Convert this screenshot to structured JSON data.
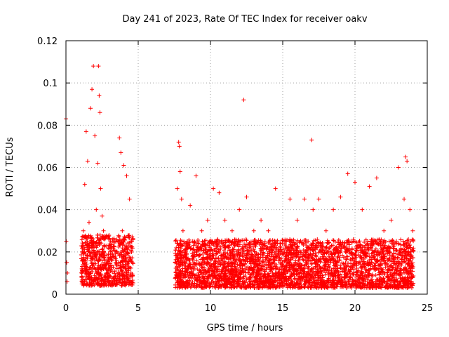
{
  "chart_data": {
    "type": "scatter",
    "title": "Day 241 of 2023, Rate Of TEC Index for receiver oakv",
    "xlabel": "GPS time / hours",
    "ylabel": "ROTI / TECUs",
    "xlim": [
      0,
      25
    ],
    "ylim": [
      0,
      0.12
    ],
    "x_ticks": [
      0,
      5,
      10,
      15,
      20,
      25
    ],
    "x_tick_labels": [
      "0",
      "5",
      "10",
      "15",
      "20",
      "25"
    ],
    "y_ticks": [
      0,
      0.02,
      0.04,
      0.06,
      0.08,
      0.1,
      0.12
    ],
    "y_tick_labels": [
      "0",
      "0.02",
      "0.04",
      "0.06",
      "0.08",
      "0.1",
      "0.12"
    ],
    "grid": true,
    "marker": "+",
    "colors": {
      "series": "#ff0000",
      "axis": "#000000",
      "grid": "#a0a0a0"
    },
    "series": [
      {
        "name": "ROTI",
        "x": [
          0.0,
          0.02,
          0.05,
          0.08,
          0.1,
          1.1,
          1.2,
          1.3,
          1.4,
          1.5,
          1.6,
          1.7,
          1.8,
          1.9,
          2.0,
          2.05,
          2.1,
          2.15,
          2.2,
          2.25,
          2.3,
          2.35,
          2.4,
          2.5,
          2.6,
          2.7,
          2.8,
          2.9,
          3.0,
          3.2,
          3.5,
          3.7,
          3.8,
          3.9,
          4.0,
          4.2,
          4.4,
          4.5,
          4.6,
          7.6,
          7.7,
          7.8,
          7.85,
          7.9,
          8.0,
          8.1,
          8.3,
          8.6,
          9.0,
          9.4,
          9.8,
          10.2,
          10.6,
          11.0,
          11.5,
          12.0,
          12.3,
          12.5,
          13.0,
          13.5,
          14.0,
          14.5,
          15.0,
          15.5,
          16.0,
          16.5,
          17.0,
          17.1,
          17.5,
          18.0,
          18.5,
          19.0,
          19.5,
          20.0,
          20.5,
          21.0,
          21.5,
          22.0,
          22.5,
          23.0,
          23.4,
          23.5,
          23.6,
          23.8,
          24.0
        ],
        "y": [
          0.083,
          0.025,
          0.015,
          0.006,
          0.01,
          0.012,
          0.03,
          0.052,
          0.077,
          0.063,
          0.034,
          0.088,
          0.097,
          0.108,
          0.075,
          0.012,
          0.04,
          0.02,
          0.062,
          0.108,
          0.094,
          0.086,
          0.05,
          0.037,
          0.03,
          0.015,
          0.01,
          0.008,
          0.012,
          0.025,
          0.02,
          0.074,
          0.067,
          0.03,
          0.061,
          0.056,
          0.045,
          0.01,
          0.015,
          0.008,
          0.05,
          0.072,
          0.07,
          0.058,
          0.045,
          0.03,
          0.02,
          0.042,
          0.056,
          0.03,
          0.035,
          0.05,
          0.048,
          0.035,
          0.03,
          0.04,
          0.092,
          0.046,
          0.03,
          0.035,
          0.03,
          0.05,
          0.01,
          0.045,
          0.035,
          0.045,
          0.073,
          0.04,
          0.045,
          0.03,
          0.04,
          0.046,
          0.057,
          0.053,
          0.04,
          0.051,
          0.055,
          0.03,
          0.035,
          0.06,
          0.045,
          0.065,
          0.063,
          0.04,
          0.03
        ],
        "dense_bands": [
          {
            "x_range": [
              1.05,
              4.65
            ],
            "y_range": [
              0.004,
              0.028
            ]
          },
          {
            "x_range": [
              7.55,
              24.05
            ],
            "y_range": [
              0.003,
              0.026
            ]
          }
        ]
      }
    ]
  }
}
